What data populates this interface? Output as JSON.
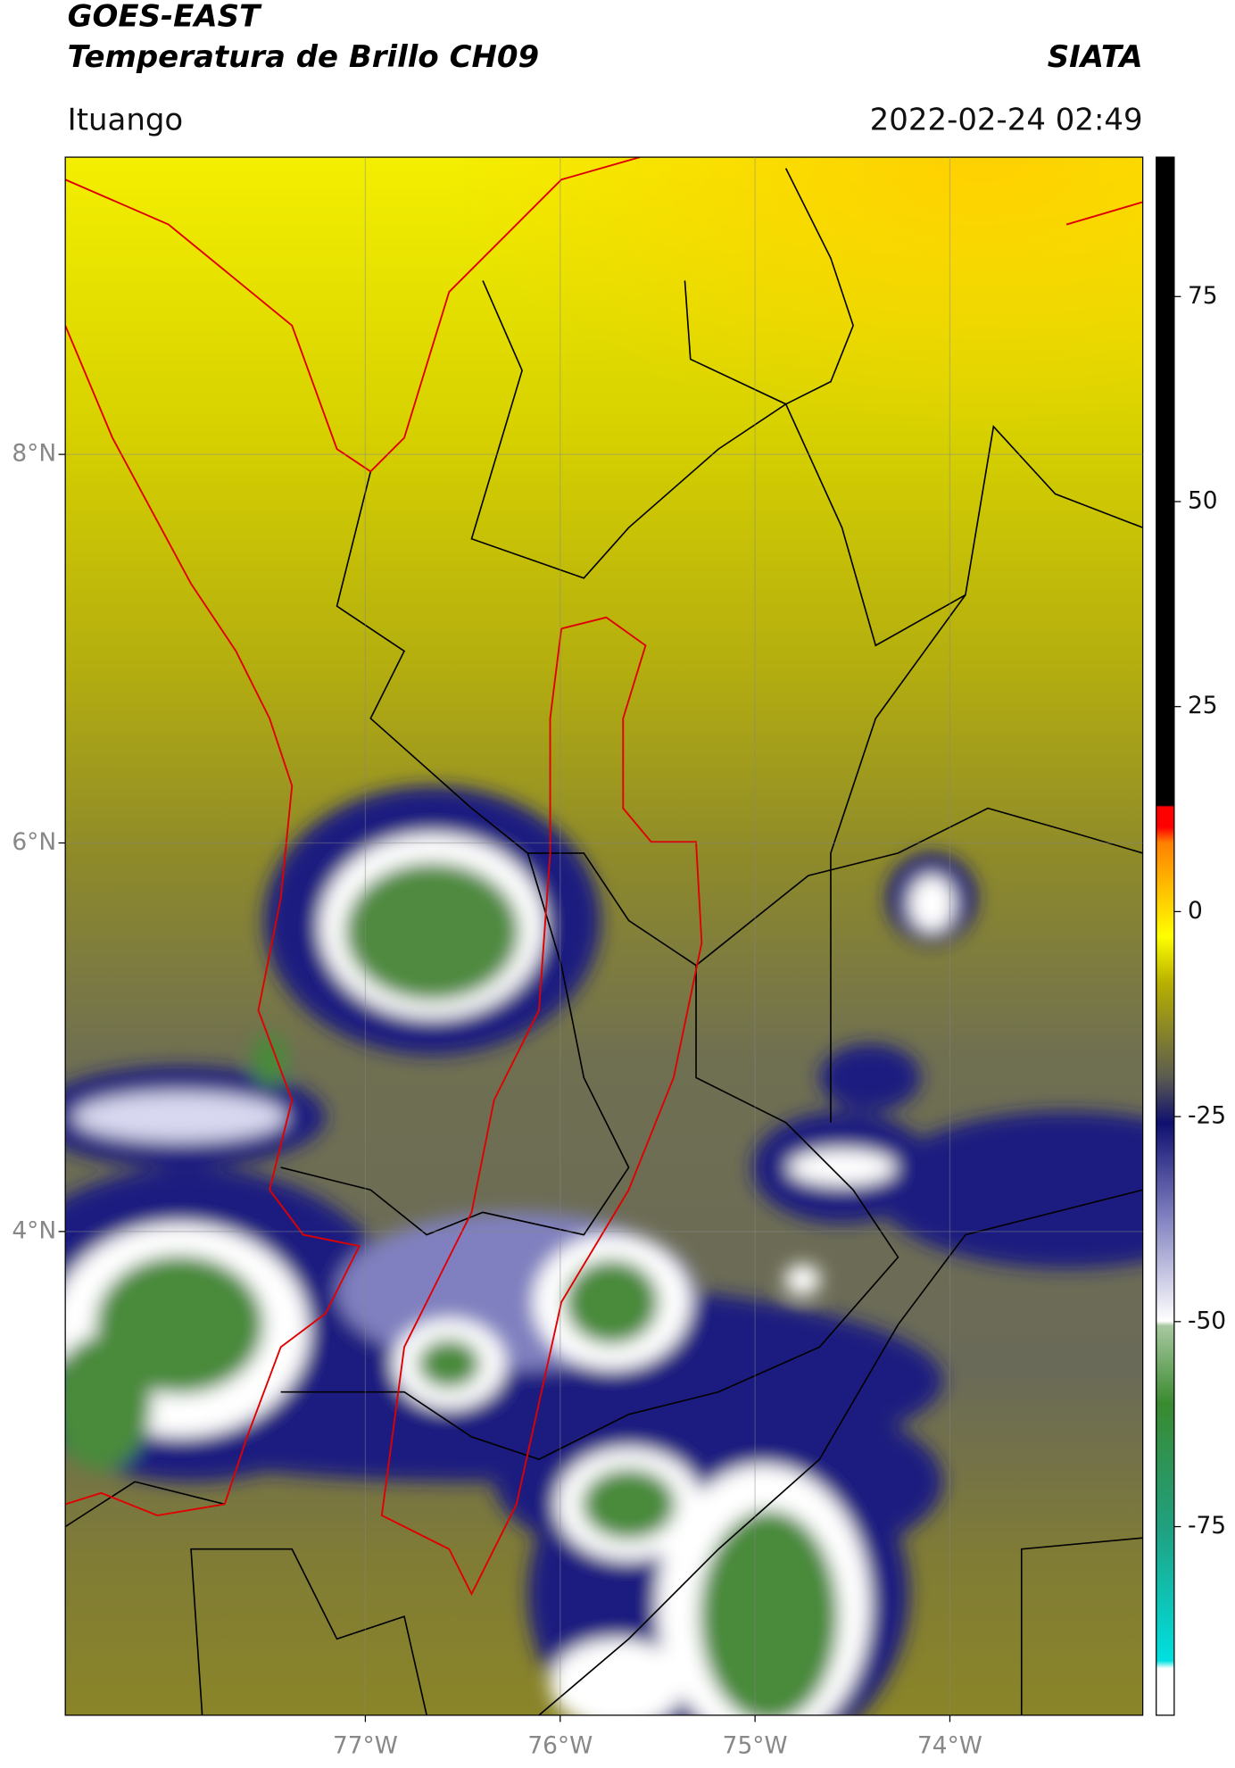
{
  "header": {
    "title": "GOES-EAST",
    "subtitle": "Temperatura de Brillo CH09",
    "source": "SIATA",
    "location": "Ituango",
    "timestamp": "2022-02-24 02:49"
  },
  "map": {
    "lon_range": [
      -78.54,
      -73.01
    ],
    "lat_range": [
      1.51,
      9.53
    ],
    "lon_ticks": [
      {
        "value": -77,
        "label": "77°W"
      },
      {
        "value": -76,
        "label": "76°W"
      },
      {
        "value": -75,
        "label": "75°W"
      },
      {
        "value": -74,
        "label": "74°W"
      }
    ],
    "lat_ticks": [
      {
        "value": 8,
        "label": "8°N"
      },
      {
        "value": 6,
        "label": "6°N"
      },
      {
        "value": 4,
        "label": "4°N"
      }
    ],
    "grid": true
  },
  "colorbar": {
    "range": [
      -98,
      92
    ],
    "ticks": [
      75,
      50,
      25,
      0,
      -25,
      -50,
      -75
    ]
  }
}
